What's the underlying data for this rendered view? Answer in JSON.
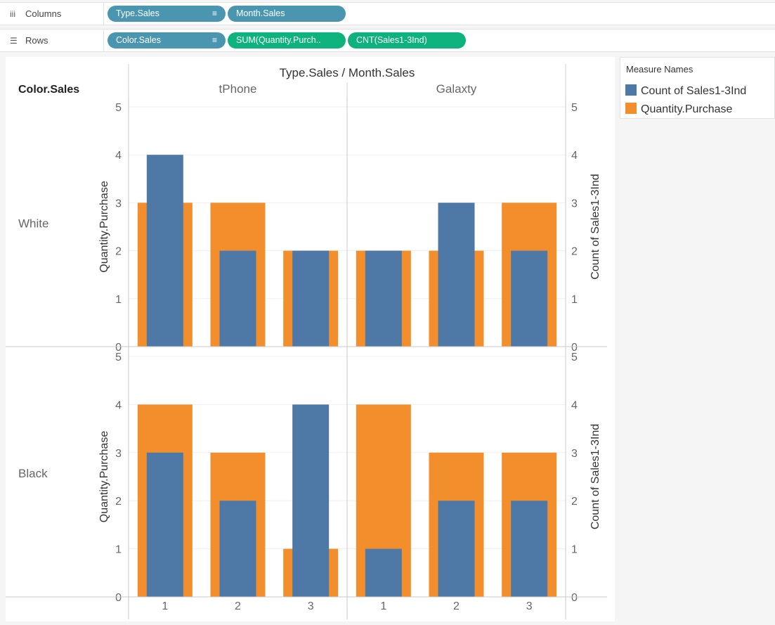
{
  "shelves": {
    "columns": {
      "label": "Columns",
      "pills": [
        {
          "text": "Type.Sales",
          "sort_icon": "sort-icon"
        },
        {
          "text": "Month.Sales"
        }
      ]
    },
    "rows": {
      "label": "Rows",
      "pills": [
        {
          "text": "Color.Sales",
          "sort_icon": "sort-icon"
        },
        {
          "text": "SUM(Quantity.Purch.."
        },
        {
          "text": "CNT(Sales1-3Ind)"
        }
      ]
    }
  },
  "legend": {
    "title": "Measure Names",
    "items": [
      {
        "label": "Count of Sales1-3Ind",
        "color": "#4e79a7"
      },
      {
        "label": "Quantity.Purchase",
        "color": "#f28e2b"
      }
    ]
  },
  "chart_data": {
    "type": "bar",
    "title": "Type.Sales / Month.Sales",
    "row_header": "Color.Sales",
    "column_groups": [
      "tPhone",
      "Galaxty"
    ],
    "categories": [
      "1",
      "2",
      "3"
    ],
    "rows": [
      "White",
      "Black"
    ],
    "ylabel_left": "Quantity.Purchase",
    "ylabel_right": "Count of Sales1-3Ind",
    "ylim": [
      0,
      5
    ],
    "yticks": [
      0,
      1,
      2,
      3,
      4,
      5
    ],
    "series_colors": {
      "Quantity.Purchase": "#f28e2b",
      "Count of Sales1-3Ind": "#4e79a7"
    },
    "panels": [
      {
        "row": "White",
        "group": "tPhone",
        "quantity_purchase": [
          3,
          3,
          2
        ],
        "count_sales": [
          4,
          2,
          2
        ]
      },
      {
        "row": "White",
        "group": "Galaxty",
        "quantity_purchase": [
          2,
          2,
          3
        ],
        "count_sales": [
          2,
          3,
          2
        ]
      },
      {
        "row": "Black",
        "group": "tPhone",
        "quantity_purchase": [
          4,
          3,
          1
        ],
        "count_sales": [
          3,
          2,
          4
        ]
      },
      {
        "row": "Black",
        "group": "Galaxty",
        "quantity_purchase": [
          4,
          3,
          3
        ],
        "count_sales": [
          1,
          2,
          2
        ]
      }
    ]
  }
}
